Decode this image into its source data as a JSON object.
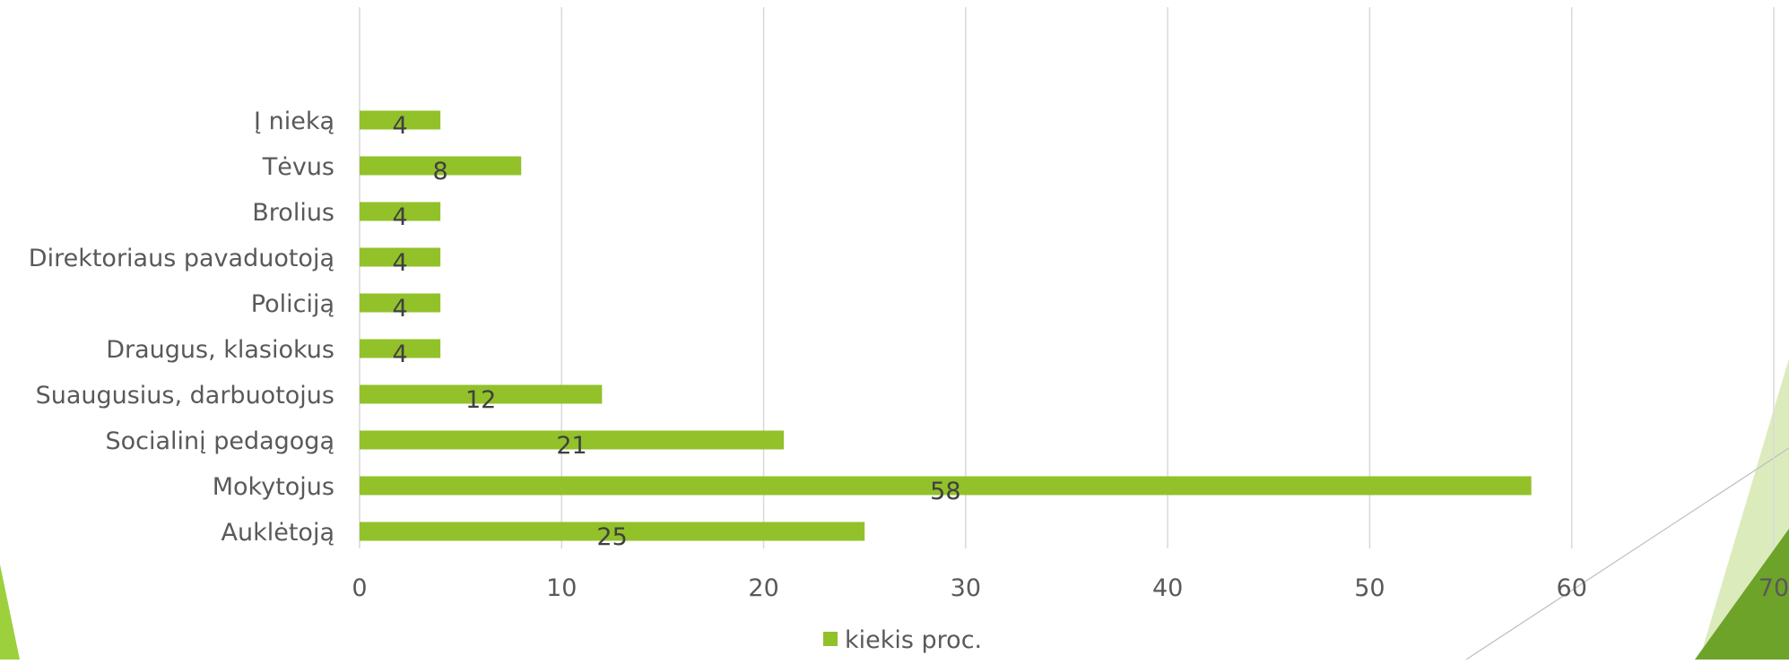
{
  "chart_data": {
    "type": "bar",
    "orientation": "horizontal",
    "categories": [
      "Į nieką",
      "Tėvus",
      "Brolius",
      "Direktoriaus pavaduotoją",
      "Policiją",
      "Draugus, klasiokus",
      "Suaugusius, darbuotojus",
      "Socialinį pedagogą",
      "Mokytojus",
      "Auklėtoją"
    ],
    "series": [
      {
        "name": "kiekis proc.",
        "color": "#92c12a",
        "values": [
          4,
          8,
          4,
          4,
          4,
          4,
          12,
          21,
          58,
          25
        ]
      }
    ],
    "xlim": [
      0,
      70
    ],
    "xticks": [
      0,
      10,
      20,
      30,
      40,
      50,
      60,
      70
    ],
    "grid": true,
    "legend_position": "bottom",
    "data_labels": true
  },
  "decoration": {
    "accent_light": "#d6e8b0",
    "accent_dark": "#6ea32a",
    "accent_bright": "#9cd03c",
    "line_color": "#bfbfbf"
  }
}
